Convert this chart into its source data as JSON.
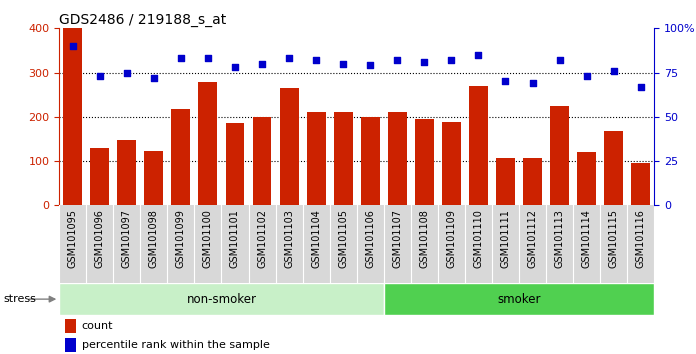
{
  "title": "GDS2486 / 219188_s_at",
  "categories": [
    "GSM101095",
    "GSM101096",
    "GSM101097",
    "GSM101098",
    "GSM101099",
    "GSM101100",
    "GSM101101",
    "GSM101102",
    "GSM101103",
    "GSM101104",
    "GSM101105",
    "GSM101106",
    "GSM101107",
    "GSM101108",
    "GSM101109",
    "GSM101110",
    "GSM101111",
    "GSM101112",
    "GSM101113",
    "GSM101114",
    "GSM101115",
    "GSM101116"
  ],
  "bar_values": [
    400,
    130,
    148,
    122,
    218,
    278,
    185,
    200,
    265,
    212,
    210,
    200,
    210,
    195,
    188,
    270,
    108,
    108,
    225,
    120,
    168,
    95
  ],
  "dot_values": [
    90,
    73,
    75,
    72,
    83,
    83,
    78,
    80,
    83,
    82,
    80,
    79,
    82,
    81,
    82,
    85,
    70,
    69,
    82,
    73,
    76,
    67
  ],
  "bar_color": "#cc2200",
  "dot_color": "#0000cc",
  "ylim_left": [
    0,
    400
  ],
  "ylim_right": [
    0,
    100
  ],
  "yticks_left": [
    0,
    100,
    200,
    300,
    400
  ],
  "yticks_right": [
    0,
    25,
    50,
    75,
    100
  ],
  "grid_values": [
    100,
    200,
    300
  ],
  "non_smoker_count": 12,
  "smoker_count": 10,
  "non_smoker_color": "#c8f0c8",
  "smoker_color": "#50d050",
  "plot_bg_color": "#ffffff",
  "stress_label": "stress",
  "non_smoker_label": "non-smoker",
  "smoker_label": "smoker",
  "legend_count_label": "count",
  "legend_pct_label": "percentile rank within the sample",
  "title_fontsize": 10,
  "tick_label_fontsize": 7,
  "ytick_fontsize": 8
}
